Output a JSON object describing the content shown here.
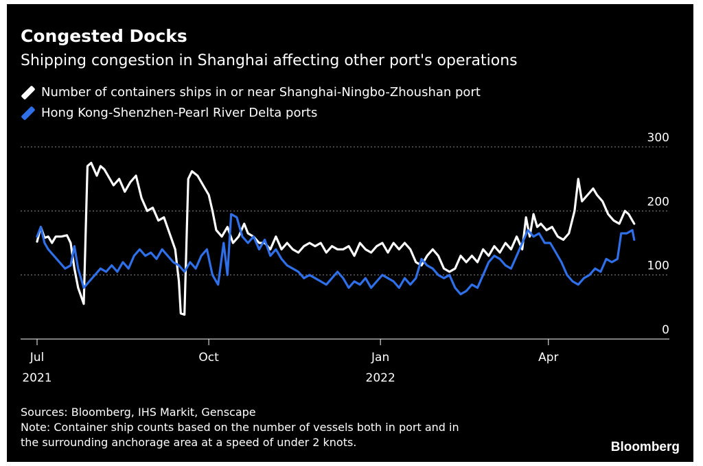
{
  "header": {
    "title": "Congested Docks",
    "subtitle": "Shipping congestion in Shanghai affecting other port's operations"
  },
  "notes": {
    "sources": "Sources: Bloomberg, IHS Markit, Genscape",
    "note_line1": "Note: Container ship counts based on the number of vessels both in port and in",
    "note_line2": "the surrounding anchorage area at a speed of under 2 knots."
  },
  "brand": "Bloomberg",
  "colors": {
    "background": "#000000",
    "shanghai": "#ffffff",
    "hongkong": "#2f6fe8",
    "grid": "#8a8a8a"
  },
  "chart_data": {
    "type": "line",
    "x_unit": "date",
    "xlim": [
      "2021-07-01",
      "2022-05-20"
    ],
    "ylim": [
      0,
      300
    ],
    "yticks": [
      0,
      100,
      200,
      300
    ],
    "grid": true,
    "legend_position": "top-left",
    "xticks": [
      {
        "date": "2021-07-01",
        "label": "Jul",
        "year": "2021"
      },
      {
        "date": "2021-10-01",
        "label": "Oct",
        "year": ""
      },
      {
        "date": "2022-01-01",
        "label": "Jan",
        "year": "2022"
      },
      {
        "date": "2022-04-01",
        "label": "Apr",
        "year": ""
      }
    ],
    "series": [
      {
        "name": "Number of containers ships in or near Shanghai-Ningbo-Zhoushan port",
        "color": "#ffffff",
        "points": [
          [
            "2021-07-01",
            152
          ],
          [
            "2021-07-03",
            175
          ],
          [
            "2021-07-05",
            158
          ],
          [
            "2021-07-07",
            160
          ],
          [
            "2021-07-09",
            150
          ],
          [
            "2021-07-11",
            160
          ],
          [
            "2021-07-14",
            160
          ],
          [
            "2021-07-17",
            162
          ],
          [
            "2021-07-19",
            150
          ],
          [
            "2021-07-21",
            110
          ],
          [
            "2021-07-23",
            80
          ],
          [
            "2021-07-26",
            55
          ],
          [
            "2021-07-28",
            270
          ],
          [
            "2021-07-30",
            275
          ],
          [
            "2021-08-02",
            255
          ],
          [
            "2021-08-04",
            270
          ],
          [
            "2021-08-06",
            265
          ],
          [
            "2021-08-08",
            255
          ],
          [
            "2021-08-11",
            240
          ],
          [
            "2021-08-14",
            250
          ],
          [
            "2021-08-17",
            230
          ],
          [
            "2021-08-20",
            245
          ],
          [
            "2021-08-23",
            255
          ],
          [
            "2021-08-26",
            220
          ],
          [
            "2021-08-29",
            200
          ],
          [
            "2021-09-01",
            205
          ],
          [
            "2021-09-04",
            185
          ],
          [
            "2021-09-07",
            190
          ],
          [
            "2021-09-10",
            165
          ],
          [
            "2021-09-13",
            140
          ],
          [
            "2021-09-15",
            90
          ],
          [
            "2021-09-16",
            40
          ],
          [
            "2021-09-18",
            38
          ],
          [
            "2021-09-20",
            250
          ],
          [
            "2021-09-22",
            262
          ],
          [
            "2021-09-25",
            255
          ],
          [
            "2021-09-28",
            240
          ],
          [
            "2021-10-01",
            225
          ],
          [
            "2021-10-03",
            200
          ],
          [
            "2021-10-05",
            170
          ],
          [
            "2021-10-08",
            160
          ],
          [
            "2021-10-11",
            175
          ],
          [
            "2021-10-14",
            150
          ],
          [
            "2021-10-17",
            160
          ],
          [
            "2021-10-20",
            180
          ],
          [
            "2021-10-22",
            165
          ],
          [
            "2021-10-25",
            160
          ],
          [
            "2021-10-28",
            150
          ],
          [
            "2021-10-31",
            150
          ],
          [
            "2021-11-03",
            140
          ],
          [
            "2021-11-06",
            160
          ],
          [
            "2021-11-09",
            140
          ],
          [
            "2021-11-12",
            150
          ],
          [
            "2021-11-15",
            140
          ],
          [
            "2021-11-18",
            135
          ],
          [
            "2021-11-21",
            145
          ],
          [
            "2021-11-24",
            150
          ],
          [
            "2021-11-27",
            145
          ],
          [
            "2021-11-30",
            150
          ],
          [
            "2021-12-03",
            135
          ],
          [
            "2021-12-06",
            145
          ],
          [
            "2021-12-09",
            140
          ],
          [
            "2021-12-12",
            140
          ],
          [
            "2021-12-15",
            145
          ],
          [
            "2021-12-18",
            130
          ],
          [
            "2021-12-21",
            150
          ],
          [
            "2021-12-24",
            140
          ],
          [
            "2021-12-27",
            135
          ],
          [
            "2021-12-30",
            145
          ],
          [
            "2022-01-02",
            150
          ],
          [
            "2022-01-05",
            135
          ],
          [
            "2022-01-08",
            150
          ],
          [
            "2022-01-11",
            140
          ],
          [
            "2022-01-14",
            150
          ],
          [
            "2022-01-17",
            140
          ],
          [
            "2022-01-20",
            120
          ],
          [
            "2022-01-23",
            115
          ],
          [
            "2022-01-26",
            130
          ],
          [
            "2022-01-29",
            140
          ],
          [
            "2022-02-01",
            130
          ],
          [
            "2022-02-04",
            110
          ],
          [
            "2022-02-07",
            105
          ],
          [
            "2022-02-10",
            110
          ],
          [
            "2022-02-13",
            130
          ],
          [
            "2022-02-16",
            120
          ],
          [
            "2022-02-19",
            130
          ],
          [
            "2022-02-22",
            120
          ],
          [
            "2022-02-25",
            140
          ],
          [
            "2022-02-28",
            130
          ],
          [
            "2022-03-03",
            145
          ],
          [
            "2022-03-06",
            135
          ],
          [
            "2022-03-09",
            150
          ],
          [
            "2022-03-12",
            140
          ],
          [
            "2022-03-15",
            160
          ],
          [
            "2022-03-18",
            140
          ],
          [
            "2022-03-20",
            190
          ],
          [
            "2022-03-22",
            160
          ],
          [
            "2022-03-24",
            195
          ],
          [
            "2022-03-26",
            175
          ],
          [
            "2022-03-28",
            180
          ],
          [
            "2022-03-31",
            170
          ],
          [
            "2022-04-03",
            175
          ],
          [
            "2022-04-06",
            160
          ],
          [
            "2022-04-09",
            155
          ],
          [
            "2022-04-12",
            165
          ],
          [
            "2022-04-15",
            200
          ],
          [
            "2022-04-17",
            250
          ],
          [
            "2022-04-19",
            215
          ],
          [
            "2022-04-22",
            225
          ],
          [
            "2022-04-25",
            235
          ],
          [
            "2022-04-27",
            225
          ],
          [
            "2022-04-30",
            215
          ],
          [
            "2022-05-03",
            195
          ],
          [
            "2022-05-06",
            185
          ],
          [
            "2022-05-09",
            180
          ],
          [
            "2022-05-12",
            200
          ],
          [
            "2022-05-14",
            195
          ],
          [
            "2022-05-17",
            180
          ]
        ]
      },
      {
        "name": "Hong Kong-Shenzhen-Pearl River Delta ports",
        "color": "#2f6fe8",
        "points": [
          [
            "2021-07-01",
            160
          ],
          [
            "2021-07-03",
            175
          ],
          [
            "2021-07-05",
            150
          ],
          [
            "2021-07-07",
            140
          ],
          [
            "2021-07-10",
            130
          ],
          [
            "2021-07-13",
            120
          ],
          [
            "2021-07-16",
            110
          ],
          [
            "2021-07-19",
            115
          ],
          [
            "2021-07-21",
            145
          ],
          [
            "2021-07-23",
            110
          ],
          [
            "2021-07-26",
            80
          ],
          [
            "2021-07-29",
            90
          ],
          [
            "2021-08-01",
            100
          ],
          [
            "2021-08-04",
            110
          ],
          [
            "2021-08-07",
            105
          ],
          [
            "2021-08-10",
            115
          ],
          [
            "2021-08-13",
            105
          ],
          [
            "2021-08-16",
            120
          ],
          [
            "2021-08-19",
            110
          ],
          [
            "2021-08-22",
            130
          ],
          [
            "2021-08-25",
            140
          ],
          [
            "2021-08-28",
            130
          ],
          [
            "2021-08-31",
            135
          ],
          [
            "2021-09-03",
            125
          ],
          [
            "2021-09-06",
            140
          ],
          [
            "2021-09-09",
            130
          ],
          [
            "2021-09-12",
            120
          ],
          [
            "2021-09-15",
            115
          ],
          [
            "2021-09-18",
            105
          ],
          [
            "2021-09-21",
            120
          ],
          [
            "2021-09-24",
            110
          ],
          [
            "2021-09-27",
            130
          ],
          [
            "2021-09-30",
            140
          ],
          [
            "2021-10-03",
            100
          ],
          [
            "2021-10-06",
            85
          ],
          [
            "2021-10-09",
            150
          ],
          [
            "2021-10-11",
            100
          ],
          [
            "2021-10-13",
            195
          ],
          [
            "2021-10-16",
            190
          ],
          [
            "2021-10-19",
            160
          ],
          [
            "2021-10-22",
            150
          ],
          [
            "2021-10-25",
            160
          ],
          [
            "2021-10-28",
            140
          ],
          [
            "2021-10-31",
            155
          ],
          [
            "2021-11-03",
            130
          ],
          [
            "2021-11-06",
            140
          ],
          [
            "2021-11-09",
            125
          ],
          [
            "2021-11-12",
            115
          ],
          [
            "2021-11-15",
            110
          ],
          [
            "2021-11-18",
            105
          ],
          [
            "2021-11-21",
            95
          ],
          [
            "2021-11-24",
            100
          ],
          [
            "2021-11-27",
            95
          ],
          [
            "2021-11-30",
            90
          ],
          [
            "2021-12-03",
            85
          ],
          [
            "2021-12-06",
            95
          ],
          [
            "2021-12-09",
            105
          ],
          [
            "2021-12-12",
            95
          ],
          [
            "2021-12-15",
            80
          ],
          [
            "2021-12-18",
            90
          ],
          [
            "2021-12-21",
            85
          ],
          [
            "2021-12-24",
            95
          ],
          [
            "2021-12-27",
            80
          ],
          [
            "2021-12-30",
            90
          ],
          [
            "2022-01-02",
            100
          ],
          [
            "2022-01-05",
            95
          ],
          [
            "2022-01-08",
            90
          ],
          [
            "2022-01-11",
            80
          ],
          [
            "2022-01-14",
            95
          ],
          [
            "2022-01-17",
            85
          ],
          [
            "2022-01-20",
            95
          ],
          [
            "2022-01-23",
            125
          ],
          [
            "2022-01-26",
            115
          ],
          [
            "2022-01-29",
            110
          ],
          [
            "2022-02-01",
            100
          ],
          [
            "2022-02-04",
            95
          ],
          [
            "2022-02-07",
            100
          ],
          [
            "2022-02-10",
            80
          ],
          [
            "2022-02-13",
            70
          ],
          [
            "2022-02-16",
            75
          ],
          [
            "2022-02-19",
            85
          ],
          [
            "2022-02-22",
            80
          ],
          [
            "2022-02-25",
            100
          ],
          [
            "2022-02-28",
            120
          ],
          [
            "2022-03-03",
            130
          ],
          [
            "2022-03-06",
            125
          ],
          [
            "2022-03-09",
            115
          ],
          [
            "2022-03-12",
            110
          ],
          [
            "2022-03-15",
            130
          ],
          [
            "2022-03-18",
            150
          ],
          [
            "2022-03-21",
            170
          ],
          [
            "2022-03-24",
            160
          ],
          [
            "2022-03-27",
            165
          ],
          [
            "2022-03-30",
            150
          ],
          [
            "2022-04-02",
            150
          ],
          [
            "2022-04-05",
            135
          ],
          [
            "2022-04-08",
            120
          ],
          [
            "2022-04-11",
            100
          ],
          [
            "2022-04-14",
            90
          ],
          [
            "2022-04-17",
            85
          ],
          [
            "2022-04-20",
            95
          ],
          [
            "2022-04-23",
            100
          ],
          [
            "2022-04-26",
            110
          ],
          [
            "2022-04-29",
            105
          ],
          [
            "2022-05-02",
            125
          ],
          [
            "2022-05-05",
            120
          ],
          [
            "2022-05-08",
            125
          ],
          [
            "2022-05-10",
            165
          ],
          [
            "2022-05-13",
            165
          ],
          [
            "2022-05-16",
            170
          ],
          [
            "2022-05-17",
            155
          ]
        ]
      }
    ]
  }
}
